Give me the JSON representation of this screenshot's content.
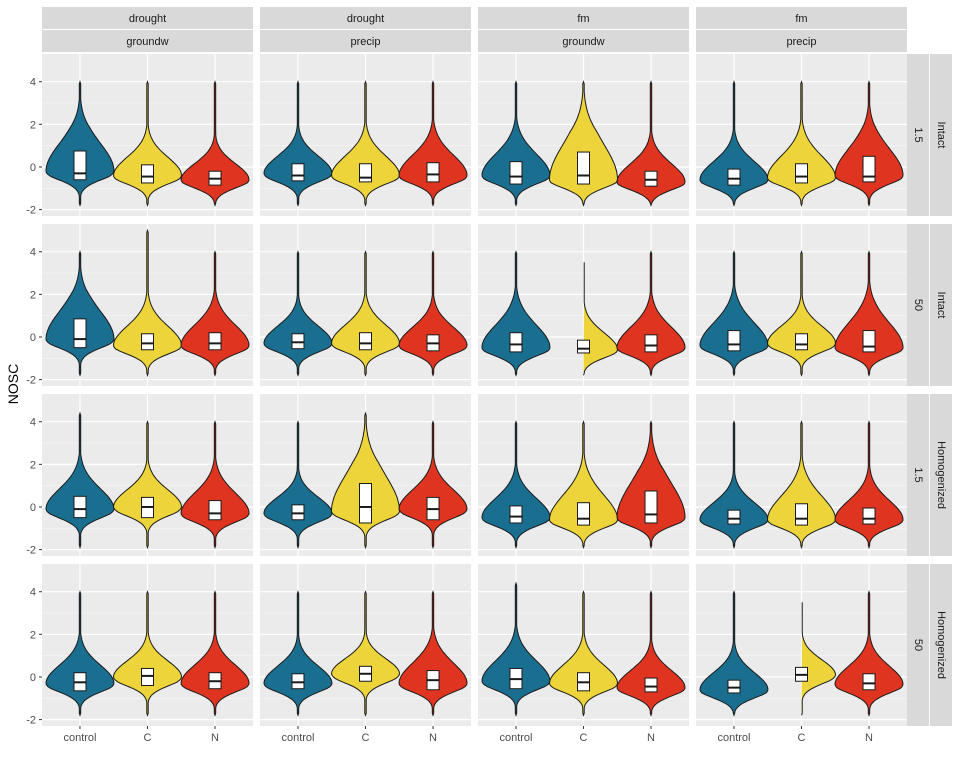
{
  "chart_data": {
    "type": "violin",
    "ylabel": "NOSC",
    "xlabel": "",
    "ylim": [
      -2.3,
      5.3
    ],
    "yticks": [
      -2,
      0,
      2,
      4
    ],
    "categories": [
      "control",
      "C",
      "N"
    ],
    "colors": {
      "control": "#1a6e8f",
      "C": "#ecd43a",
      "N": "#df3520"
    },
    "column_strips": [
      {
        "top": "drought",
        "bottom": "groundw"
      },
      {
        "top": "drought",
        "bottom": "precip"
      },
      {
        "top": "fm",
        "bottom": "groundw"
      },
      {
        "top": "fm",
        "bottom": "precip"
      }
    ],
    "row_strips": [
      {
        "outer": "Intact",
        "inner": "1.5"
      },
      {
        "outer": "Intact",
        "inner": "50"
      },
      {
        "outer": "Homogenized",
        "inner": "1.5"
      },
      {
        "outer": "Homogenized",
        "inner": "50"
      }
    ],
    "panels": [
      [
        [
          {
            "q1": -0.6,
            "median": -0.3,
            "q3": 0.75,
            "min": -1.8,
            "max": 4.0,
            "mode": -0.2
          },
          {
            "q1": -0.75,
            "median": -0.45,
            "q3": 0.1,
            "min": -1.8,
            "max": 4.0,
            "mode": -0.4
          },
          {
            "q1": -0.85,
            "median": -0.55,
            "q3": -0.2,
            "min": -1.8,
            "max": 4.0,
            "mode": -0.6
          }
        ],
        [
          {
            "q1": -0.65,
            "median": -0.4,
            "q3": 0.15,
            "min": -1.8,
            "max": 4.0,
            "mode": -0.3
          },
          {
            "q1": -0.7,
            "median": -0.5,
            "q3": 0.15,
            "min": -1.8,
            "max": 4.0,
            "mode": -0.4
          },
          {
            "q1": -0.7,
            "median": -0.35,
            "q3": 0.2,
            "min": -1.8,
            "max": 4.0,
            "mode": -0.4
          }
        ],
        [
          {
            "q1": -0.8,
            "median": -0.45,
            "q3": 0.25,
            "min": -1.8,
            "max": 4.0,
            "mode": -0.4
          },
          {
            "q1": -0.8,
            "median": -0.4,
            "q3": 0.7,
            "min": -1.8,
            "max": 4.0,
            "mode": -0.6
          },
          {
            "q1": -0.9,
            "median": -0.6,
            "q3": -0.2,
            "min": -1.8,
            "max": 4.0,
            "mode": -0.7
          }
        ],
        [
          {
            "q1": -0.85,
            "median": -0.55,
            "q3": -0.1,
            "min": -1.8,
            "max": 4.0,
            "mode": -0.6
          },
          {
            "q1": -0.75,
            "median": -0.45,
            "q3": 0.15,
            "min": -1.8,
            "max": 4.0,
            "mode": -0.5
          },
          {
            "q1": -0.7,
            "median": -0.45,
            "q3": 0.5,
            "min": -1.8,
            "max": 4.0,
            "mode": -0.4
          }
        ]
      ],
      [
        [
          {
            "q1": -0.5,
            "median": -0.1,
            "q3": 0.85,
            "min": -1.8,
            "max": 4.0,
            "mode": -0.1
          },
          {
            "q1": -0.6,
            "median": -0.3,
            "q3": 0.15,
            "min": -1.8,
            "max": 5.0,
            "mode": -0.4
          },
          {
            "q1": -0.6,
            "median": -0.3,
            "q3": 0.2,
            "min": -1.8,
            "max": 4.0,
            "mode": -0.4
          }
        ],
        [
          {
            "q1": -0.55,
            "median": -0.25,
            "q3": 0.15,
            "min": -1.8,
            "max": 4.0,
            "mode": -0.3
          },
          {
            "q1": -0.6,
            "median": -0.3,
            "q3": 0.2,
            "min": -1.8,
            "max": 4.0,
            "mode": -0.3
          },
          {
            "q1": -0.65,
            "median": -0.3,
            "q3": 0.1,
            "min": -1.8,
            "max": 4.0,
            "mode": -0.4
          }
        ],
        [
          {
            "q1": -0.7,
            "median": -0.35,
            "q3": 0.2,
            "min": -1.8,
            "max": 4.0,
            "mode": -0.5
          },
          {
            "q1": -0.75,
            "median": -0.55,
            "q3": -0.15,
            "min": -1.8,
            "max": 3.6,
            "mode": -0.6
          },
          {
            "q1": -0.7,
            "median": -0.4,
            "q3": 0.1,
            "min": -1.8,
            "max": 4.0,
            "mode": -0.5
          }
        ],
        [
          {
            "q1": -0.65,
            "median": -0.35,
            "q3": 0.3,
            "min": -1.8,
            "max": 4.0,
            "mode": -0.4
          },
          {
            "q1": -0.6,
            "median": -0.35,
            "q3": 0.15,
            "min": -1.8,
            "max": 4.0,
            "mode": -0.3
          },
          {
            "q1": -0.7,
            "median": -0.45,
            "q3": 0.3,
            "min": -1.8,
            "max": 4.0,
            "mode": -0.5
          }
        ]
      ],
      [
        [
          {
            "q1": -0.5,
            "median": -0.1,
            "q3": 0.5,
            "min": -1.9,
            "max": 4.4,
            "mode": -0.1
          },
          {
            "q1": -0.5,
            "median": 0.0,
            "q3": 0.45,
            "min": -1.9,
            "max": 4.0,
            "mode": 0.0
          },
          {
            "q1": -0.6,
            "median": -0.3,
            "q3": 0.3,
            "min": -1.9,
            "max": 4.0,
            "mode": -0.3
          }
        ],
        [
          {
            "q1": -0.6,
            "median": -0.3,
            "q3": 0.1,
            "min": -1.9,
            "max": 4.0,
            "mode": -0.3
          },
          {
            "q1": -0.75,
            "median": 0.0,
            "q3": 1.1,
            "min": -1.9,
            "max": 4.4,
            "mode": -0.2
          },
          {
            "q1": -0.6,
            "median": -0.1,
            "q3": 0.45,
            "min": -1.9,
            "max": 4.0,
            "mode": -0.1
          }
        ],
        [
          {
            "q1": -0.75,
            "median": -0.45,
            "q3": 0.05,
            "min": -1.9,
            "max": 4.0,
            "mode": -0.5
          },
          {
            "q1": -0.85,
            "median": -0.55,
            "q3": 0.2,
            "min": -1.9,
            "max": 4.0,
            "mode": -0.6
          },
          {
            "q1": -0.75,
            "median": -0.35,
            "q3": 0.75,
            "min": -1.9,
            "max": 4.0,
            "mode": -0.5
          }
        ],
        [
          {
            "q1": -0.8,
            "median": -0.55,
            "q3": -0.15,
            "min": -1.9,
            "max": 4.0,
            "mode": -0.6
          },
          {
            "q1": -0.85,
            "median": -0.55,
            "q3": 0.15,
            "min": -1.9,
            "max": 4.0,
            "mode": -0.6
          },
          {
            "q1": -0.8,
            "median": -0.55,
            "q3": -0.05,
            "min": -1.9,
            "max": 4.0,
            "mode": -0.6
          }
        ]
      ],
      [
        [
          {
            "q1": -0.65,
            "median": -0.25,
            "q3": 0.2,
            "min": -1.8,
            "max": 4.0,
            "mode": -0.3
          },
          {
            "q1": -0.4,
            "median": 0.05,
            "q3": 0.4,
            "min": -1.8,
            "max": 4.0,
            "mode": 0.0
          },
          {
            "q1": -0.55,
            "median": -0.2,
            "q3": 0.2,
            "min": -1.8,
            "max": 4.0,
            "mode": -0.3
          }
        ],
        [
          {
            "q1": -0.55,
            "median": -0.25,
            "q3": 0.15,
            "min": -1.8,
            "max": 4.0,
            "mode": -0.3
          },
          {
            "q1": -0.2,
            "median": 0.15,
            "q3": 0.5,
            "min": -1.8,
            "max": 4.0,
            "mode": 0.15
          },
          {
            "q1": -0.6,
            "median": -0.15,
            "q3": 0.3,
            "min": -1.8,
            "max": 4.0,
            "mode": -0.3
          }
        ],
        [
          {
            "q1": -0.55,
            "median": -0.1,
            "q3": 0.4,
            "min": -1.8,
            "max": 4.4,
            "mode": -0.2
          },
          {
            "q1": -0.65,
            "median": -0.25,
            "q3": 0.2,
            "min": -1.8,
            "max": 4.0,
            "mode": -0.3
          },
          {
            "q1": -0.7,
            "median": -0.45,
            "q3": -0.05,
            "min": -1.8,
            "max": 4.0,
            "mode": -0.5
          }
        ],
        [
          {
            "q1": -0.75,
            "median": -0.5,
            "q3": -0.15,
            "min": -1.8,
            "max": 4.0,
            "mode": -0.6
          },
          {
            "q1": -0.2,
            "median": 0.1,
            "q3": 0.45,
            "min": -1.8,
            "max": 3.6,
            "mode": 0.1
          },
          {
            "q1": -0.6,
            "median": -0.3,
            "q3": 0.15,
            "min": -1.8,
            "max": 4.0,
            "mode": -0.35
          }
        ]
      ]
    ]
  }
}
